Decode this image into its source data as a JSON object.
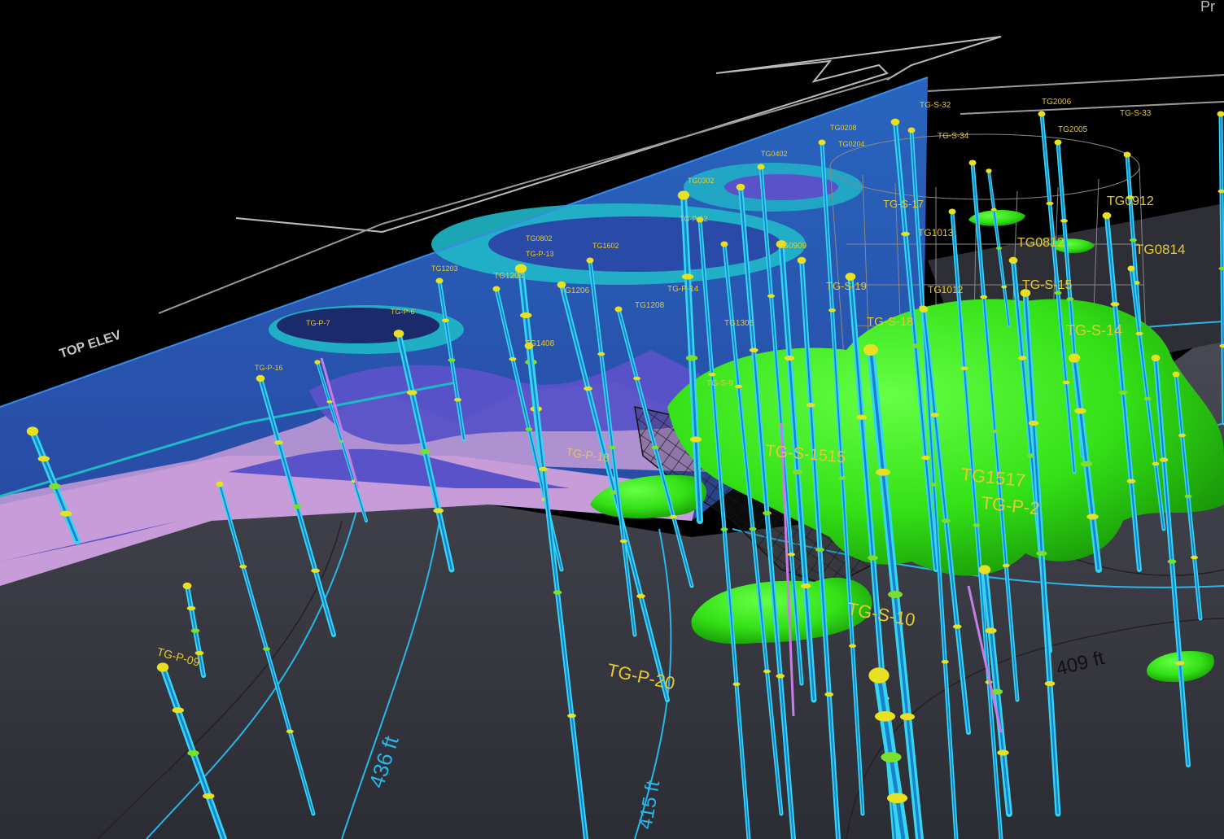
{
  "window": {
    "corner_text": "Pr"
  },
  "colors": {
    "background": "#000000",
    "ground": "#3a3a44",
    "section_deep": "#1a2a6a",
    "section_blue": "#1f4fa0",
    "section_cyan": "#1fb8c8",
    "section_violet": "#5a52c8",
    "section_pink": "#c79cd8",
    "plume_green": "#33e016",
    "boring_cyan": "#35d6f0",
    "boring_blue": "#1a80d0",
    "boring_yellow": "#e8e020",
    "label_yellow": "#e6c832",
    "contour_cyan": "#29b6e8"
  },
  "scene_text": {
    "axis_title": "TOP ELEV"
  },
  "contour_labels": [
    {
      "text": "436 ft"
    },
    {
      "text": "409 ft"
    },
    {
      "text": "415 ft"
    }
  ],
  "well_labels": [
    {
      "text": "TG-P-20"
    },
    {
      "text": "TG-S-10"
    },
    {
      "text": "TG1517"
    },
    {
      "text": "TG-P-2"
    },
    {
      "text": "TG-S-1515"
    },
    {
      "text": "TG-S-14"
    },
    {
      "text": "TG0814"
    },
    {
      "text": "TG0812"
    },
    {
      "text": "TG0912"
    },
    {
      "text": "TG-S-15"
    },
    {
      "text": "TG-P-18"
    },
    {
      "text": "TG-P-09"
    },
    {
      "text": "TG-S-33"
    },
    {
      "text": "TG-S-34"
    },
    {
      "text": "TG-S-32"
    },
    {
      "text": "TG2006"
    },
    {
      "text": "TG-S-17"
    },
    {
      "text": "TG-S-18"
    },
    {
      "text": "TG-S-19"
    },
    {
      "text": "TG1013"
    },
    {
      "text": "TG1012"
    },
    {
      "text": "TG0909"
    },
    {
      "text": "TG1208"
    },
    {
      "text": "TG1206"
    },
    {
      "text": "TG1204"
    },
    {
      "text": "TG1305"
    },
    {
      "text": "TG1408"
    },
    {
      "text": "TG0802"
    },
    {
      "text": "TG-P-13"
    },
    {
      "text": "TG1602"
    },
    {
      "text": "TG-P-14"
    },
    {
      "text": "TG-S-9"
    },
    {
      "text": "TG0208"
    },
    {
      "text": "TG0402"
    },
    {
      "text": "TG0302"
    },
    {
      "text": "TG-P-6"
    },
    {
      "text": "TG-P-7"
    },
    {
      "text": "TG-P-16"
    },
    {
      "text": "TG-P-12"
    },
    {
      "text": "TG1203"
    },
    {
      "text": "TG0204"
    },
    {
      "text": "TG2005"
    }
  ]
}
